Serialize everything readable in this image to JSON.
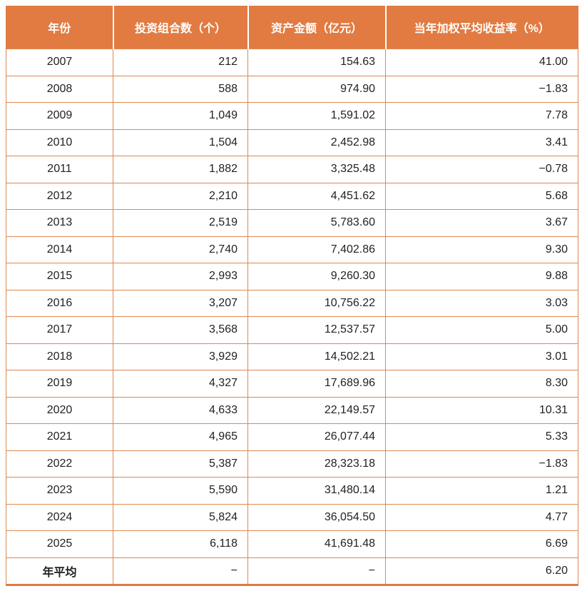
{
  "accent_color": "#E17B42",
  "border_color": "#DE8850",
  "header_text_color": "#FFFFFF",
  "body_text_color": "#222222",
  "table": {
    "columns": [
      "年份",
      "投资组合数（个）",
      "资产金额（亿元）",
      "当年加权平均收益率（%）"
    ],
    "rows": [
      [
        "2007",
        "212",
        "154.63",
        "41.00"
      ],
      [
        "2008",
        "588",
        "974.90",
        "−1.83"
      ],
      [
        "2009",
        "1,049",
        "1,591.02",
        "7.78"
      ],
      [
        "2010",
        "1,504",
        "2,452.98",
        "3.41"
      ],
      [
        "2011",
        "1,882",
        "3,325.48",
        "−0.78"
      ],
      [
        "2012",
        "2,210",
        "4,451.62",
        "5.68"
      ],
      [
        "2013",
        "2,519",
        "5,783.60",
        "3.67"
      ],
      [
        "2014",
        "2,740",
        "7,402.86",
        "9.30"
      ],
      [
        "2015",
        "2,993",
        "9,260.30",
        "9.88"
      ],
      [
        "2016",
        "3,207",
        "10,756.22",
        "3.03"
      ],
      [
        "2017",
        "3,568",
        "12,537.57",
        "5.00"
      ],
      [
        "2018",
        "3,929",
        "14,502.21",
        "3.01"
      ],
      [
        "2019",
        "4,327",
        "17,689.96",
        "8.30"
      ],
      [
        "2020",
        "4,633",
        "22,149.57",
        "10.31"
      ],
      [
        "2021",
        "4,965",
        "26,077.44",
        "5.33"
      ],
      [
        "2022",
        "5,387",
        "28,323.18",
        "−1.83"
      ],
      [
        "2023",
        "5,590",
        "31,480.14",
        "1.21"
      ],
      [
        "2024",
        "5,824",
        "36,054.50",
        "4.77"
      ],
      [
        "2025",
        "6,118",
        "41,691.48",
        "6.69"
      ],
      [
        "年平均",
        "−",
        "−",
        "6.20"
      ]
    ]
  },
  "chart_data": {
    "type": "table",
    "title": "",
    "columns": [
      "年份",
      "投资组合数（个）",
      "资产金额（亿元）",
      "当年加权平均收益率（%）"
    ],
    "years": [
      2007,
      2008,
      2009,
      2010,
      2011,
      2012,
      2013,
      2014,
      2015,
      2016,
      2017,
      2018,
      2019,
      2020,
      2021,
      2022,
      2023,
      2024,
      2025
    ],
    "series": [
      {
        "name": "投资组合数（个）",
        "values": [
          212,
          588,
          1049,
          1504,
          1882,
          2210,
          2519,
          2740,
          2993,
          3207,
          3568,
          3929,
          4327,
          4633,
          4965,
          5387,
          5590,
          5824,
          6118
        ]
      },
      {
        "name": "资产金额（亿元）",
        "values": [
          154.63,
          974.9,
          1591.02,
          2452.98,
          3325.48,
          4451.62,
          5783.6,
          7402.86,
          9260.3,
          10756.22,
          12537.57,
          14502.21,
          17689.96,
          22149.57,
          26077.44,
          28323.18,
          31480.14,
          36054.5,
          41691.48
        ]
      },
      {
        "name": "当年加权平均收益率（%）",
        "values": [
          41.0,
          -1.83,
          7.78,
          3.41,
          -0.78,
          5.68,
          3.67,
          9.3,
          9.88,
          3.03,
          5.0,
          3.01,
          8.3,
          10.31,
          5.33,
          -1.83,
          1.21,
          4.77,
          6.69
        ]
      }
    ],
    "summary_row": {
      "label": "年平均",
      "投资组合数（个）": null,
      "资产金额（亿元）": null,
      "当年加权平均收益率（%）": 6.2
    }
  }
}
